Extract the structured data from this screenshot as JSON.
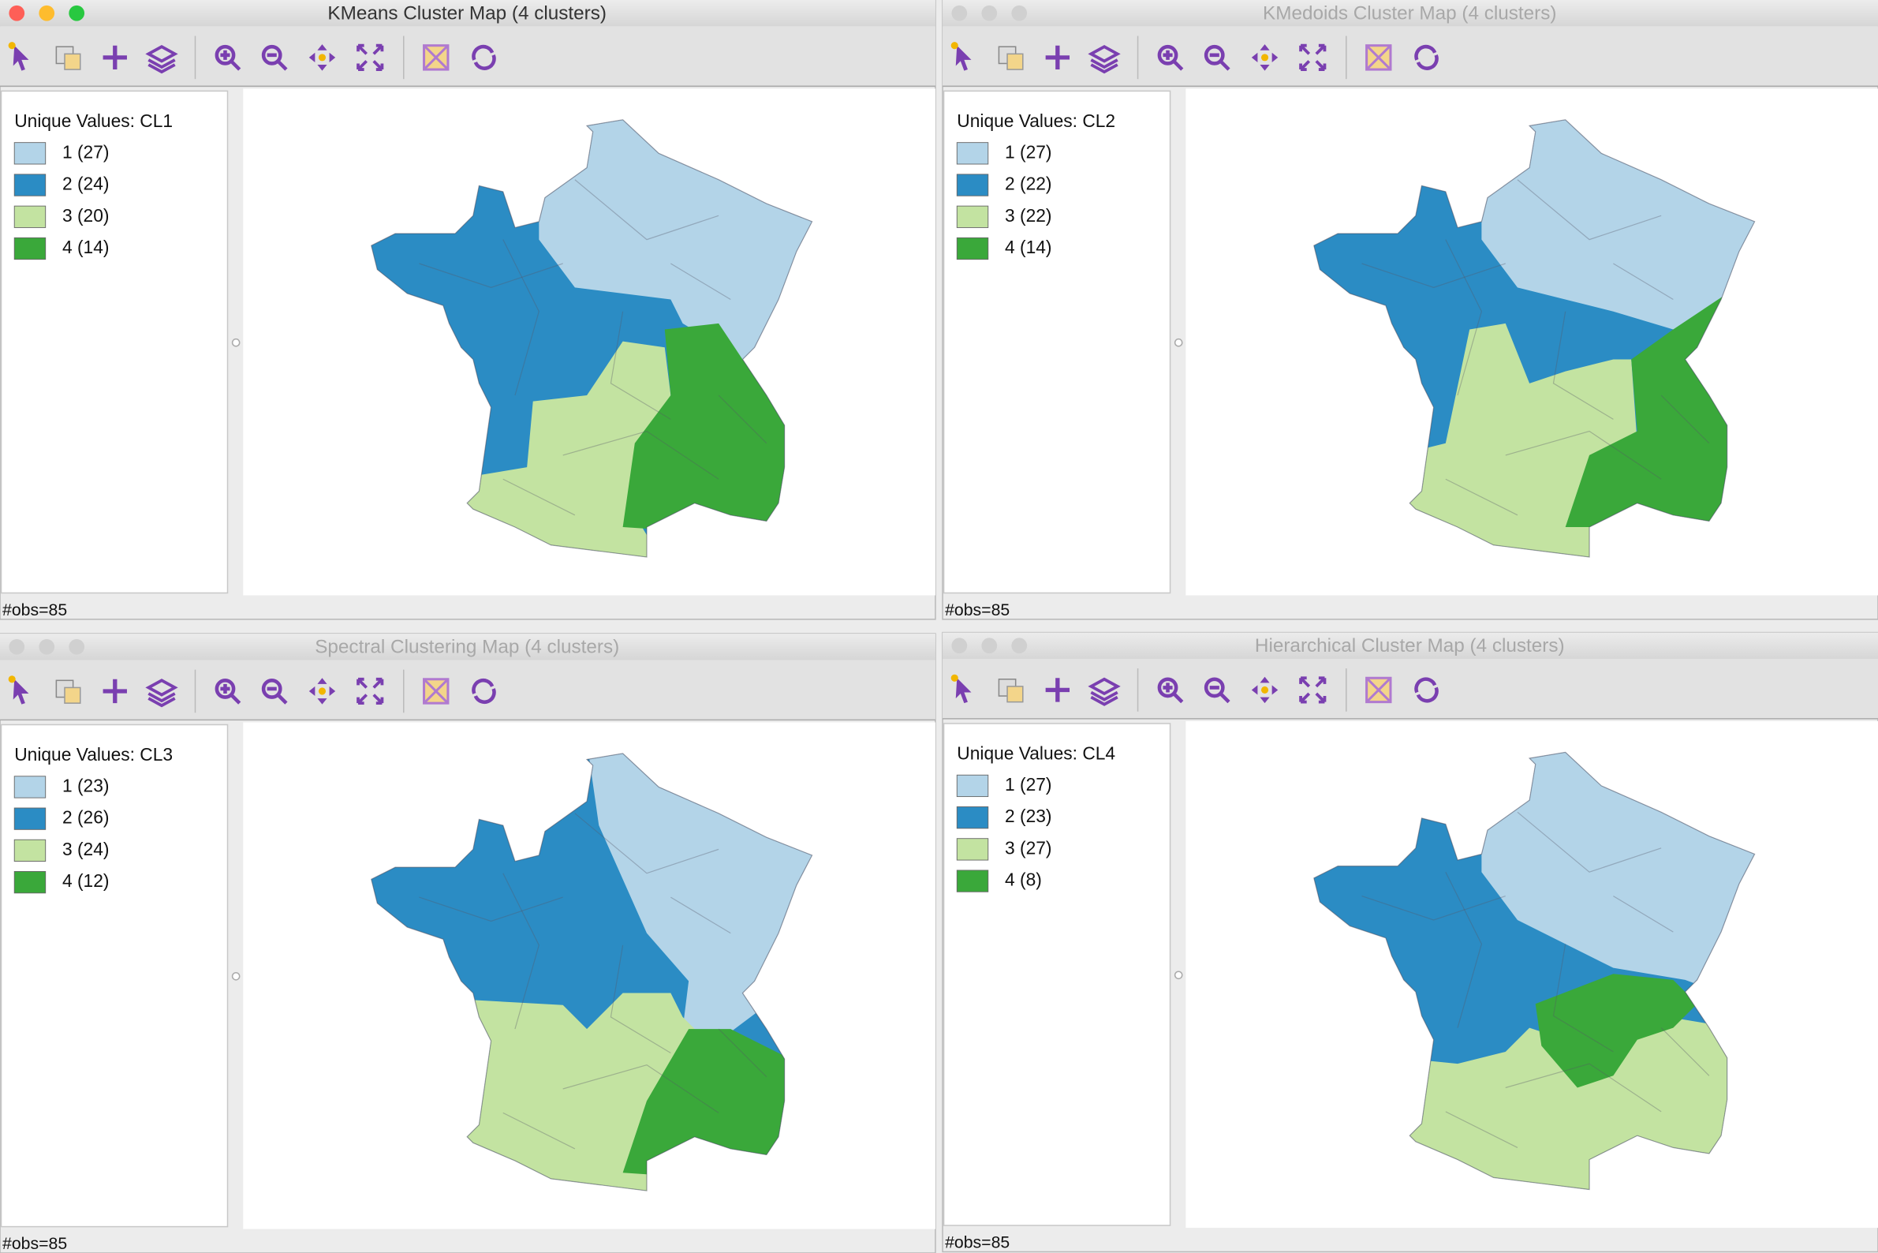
{
  "windows": [
    {
      "title": "KMeans Cluster Map (4 clusters)",
      "active": true,
      "legend_title": "Unique Values: CL1",
      "legend": [
        {
          "label": "1 (27)",
          "color": "#b3d4e8"
        },
        {
          "label": "2 (24)",
          "color": "#2b8cc4"
        },
        {
          "label": "3 (20)",
          "color": "#c3e3a1"
        },
        {
          "label": "4 (14)",
          "color": "#3aa83a"
        }
      ],
      "status": "#obs=85"
    },
    {
      "title": "KMedoids Cluster Map (4 clusters)",
      "active": false,
      "legend_title": "Unique Values: CL2",
      "legend": [
        {
          "label": "1 (27)",
          "color": "#b3d4e8"
        },
        {
          "label": "2 (22)",
          "color": "#2b8cc4"
        },
        {
          "label": "3 (22)",
          "color": "#c3e3a1"
        },
        {
          "label": "4 (14)",
          "color": "#3aa83a"
        }
      ],
      "status": "#obs=85"
    },
    {
      "title": "Spectral Clustering Map (4 clusters)",
      "active": false,
      "legend_title": "Unique Values: CL3",
      "legend": [
        {
          "label": "1 (23)",
          "color": "#b3d4e8"
        },
        {
          "label": "2 (26)",
          "color": "#2b8cc4"
        },
        {
          "label": "3 (24)",
          "color": "#c3e3a1"
        },
        {
          "label": "4 (12)",
          "color": "#3aa83a"
        }
      ],
      "status": "#obs=85"
    },
    {
      "title": "Hierarchical Cluster Map (4 clusters)",
      "active": false,
      "legend_title": "Unique Values: CL4",
      "legend": [
        {
          "label": "1 (27)",
          "color": "#b3d4e8"
        },
        {
          "label": "2 (23)",
          "color": "#2b8cc4"
        },
        {
          "label": "3 (27)",
          "color": "#c3e3a1"
        },
        {
          "label": "4 (8)",
          "color": "#3aa83a"
        }
      ],
      "status": "#obs=85"
    }
  ]
}
